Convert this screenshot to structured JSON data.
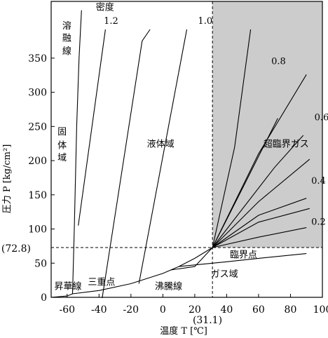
{
  "chart_data": {
    "type": "line",
    "xlabel": "温度 T [℃]",
    "ylabel": "圧力 P [kg/cm²]",
    "xlim": [
      -70,
      100
    ],
    "ylim": [
      0,
      400
    ],
    "x_ticks": [
      -60,
      -40,
      -20,
      0,
      20,
      40,
      60,
      80,
      100
    ],
    "y_ticks": [
      0,
      50,
      100,
      150,
      200,
      250,
      300,
      350
    ],
    "critical_point": {
      "x": 31.1,
      "y": 72.8,
      "x_label": "(31.1)",
      "y_label": "(72.8)"
    },
    "supercritical_region": {
      "x_min": 31.1,
      "y_min": 72.8,
      "color": "#cccccc"
    },
    "density_title": "密度",
    "colors": {
      "line": "#000000",
      "shade": "#cccccc",
      "background": "#ffffff"
    },
    "series": [
      {
        "name": "昇華線",
        "x": [
          -70,
          -65,
          -60,
          -56.6
        ],
        "y": [
          0,
          1,
          2,
          5.1
        ]
      },
      {
        "name": "溶融線",
        "x": [
          -56.6,
          -55.5,
          -54,
          -52.5,
          -51
        ],
        "y": [
          5.1,
          100,
          250,
          350,
          420
        ]
      },
      {
        "name": "沸騰線",
        "x": [
          -56.6,
          -40,
          -20,
          0,
          10,
          20,
          31.1
        ],
        "y": [
          5.1,
          10,
          20,
          35,
          45,
          57,
          72.8
        ]
      },
      {
        "name": "ガス域 boundary",
        "x": [
          10,
          40,
          60,
          90
        ],
        "y": [
          45,
          52,
          57,
          64
        ]
      },
      {
        "name": "1.2",
        "x": [
          -53,
          -36
        ],
        "y": [
          105,
          392
        ]
      },
      {
        "name": "1.0",
        "x": [
          -38,
          -13,
          -8
        ],
        "y": [
          -1,
          375,
          392
        ]
      },
      {
        "name": "liq-d",
        "x": [
          -15,
          15
        ],
        "y": [
          20,
          392
        ]
      },
      {
        "name": "liq-e",
        "x": [
          5,
          20,
          31.1
        ],
        "y": [
          40,
          45,
          72.8
        ]
      },
      {
        "name": "sc-steep",
        "x": [
          31.1,
          45,
          55
        ],
        "y": [
          72.8,
          220,
          392
        ]
      },
      {
        "name": "0.8",
        "x": [
          31.1,
          50,
          72
        ],
        "y": [
          72.8,
          160,
          262
        ]
      },
      {
        "name": "0.6",
        "x": [
          31.1,
          60,
          90
        ],
        "y": [
          72.8,
          210,
          326
        ]
      },
      {
        "name": "0.6 upper",
        "x": [
          31.1,
          70,
          88
        ],
        "y": [
          72.8,
          190,
          237
        ]
      },
      {
        "name": "0.4",
        "x": [
          31.1,
          60,
          92
        ],
        "y": [
          72.8,
          140,
          202
        ]
      },
      {
        "name": "0.4 lower",
        "x": [
          31.1,
          60,
          90
        ],
        "y": [
          72.8,
          120,
          145
        ]
      },
      {
        "name": "0.2",
        "x": [
          31.1,
          60,
          92
        ],
        "y": [
          72.8,
          110,
          130
        ]
      },
      {
        "name": "0.2 lower",
        "x": [
          31.1,
          60,
          90
        ],
        "y": [
          72.8,
          88,
          102
        ]
      }
    ],
    "annotations": [
      {
        "text": "密度",
        "x": -42,
        "y": 420
      },
      {
        "text": "1.2",
        "x": -37,
        "y": 400
      },
      {
        "text": "1.0",
        "x": 22,
        "y": 400
      },
      {
        "text": "0.8",
        "x": 68,
        "y": 341
      },
      {
        "text": "0.6",
        "x": 95,
        "y": 259
      },
      {
        "text": "0.4",
        "x": 93,
        "y": 166
      },
      {
        "text": "0.2",
        "x": 93,
        "y": 106
      },
      {
        "text": "溶",
        "x": -63,
        "y": 393
      },
      {
        "text": "融",
        "x": -63,
        "y": 375
      },
      {
        "text": "線",
        "x": -63,
        "y": 356
      },
      {
        "text": "固",
        "x": -66,
        "y": 238
      },
      {
        "text": "体",
        "x": -66,
        "y": 218
      },
      {
        "text": "域",
        "x": -66,
        "y": 200
      },
      {
        "text": "液体域",
        "x": -10,
        "y": 220
      },
      {
        "text": "超臨界ガス",
        "x": 63,
        "y": 220
      },
      {
        "text": "臨界点",
        "x": 42,
        "y": 58
      },
      {
        "text": "三重点",
        "x": -47,
        "y": 18
      },
      {
        "text": "昇華線",
        "x": -68,
        "y": 12
      },
      {
        "text": "沸騰線",
        "x": -5,
        "y": 12
      },
      {
        "text": "ガス域",
        "x": 30,
        "y": 30
      }
    ]
  }
}
